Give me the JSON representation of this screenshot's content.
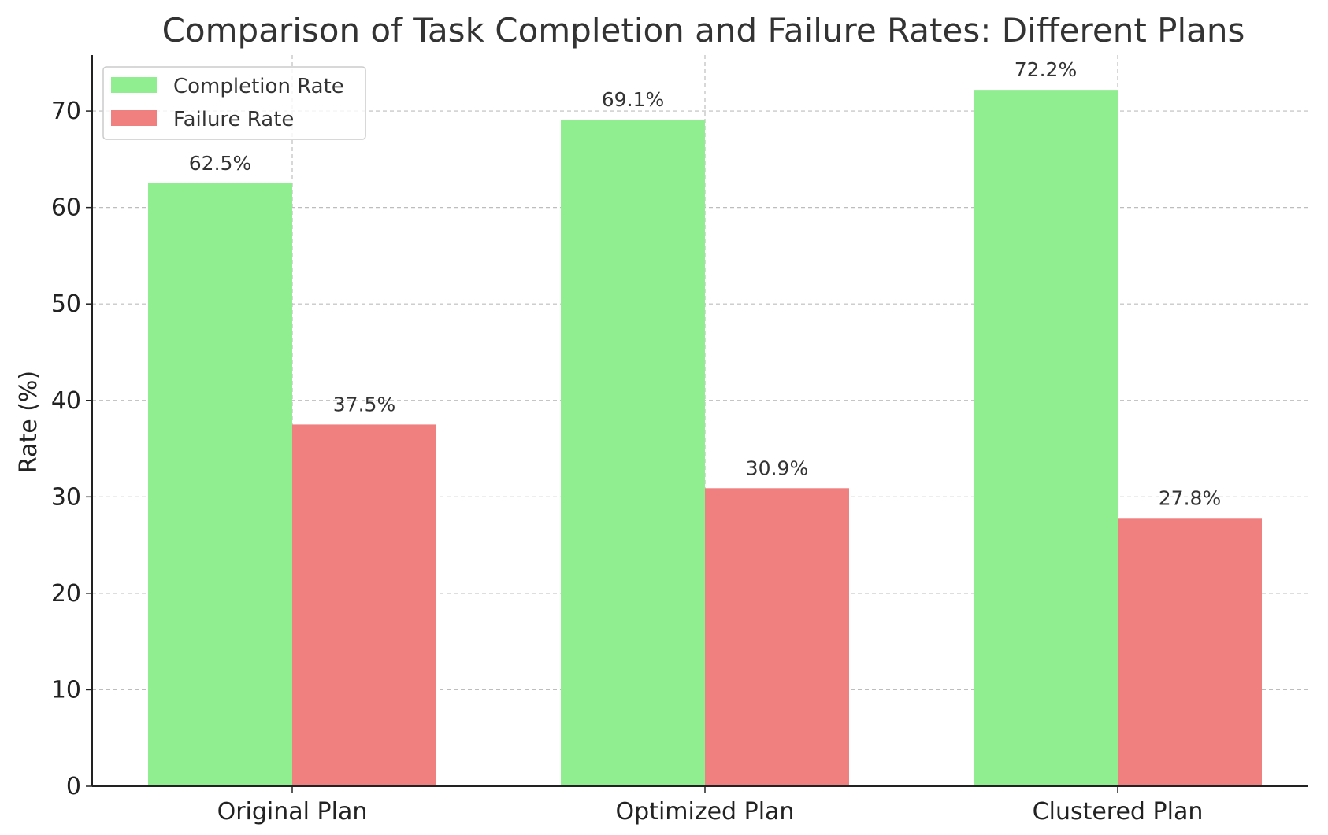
{
  "chart_data": {
    "type": "bar",
    "title": "Comparison of Task Completion and Failure Rates: Different Plans",
    "xlabel": "",
    "ylabel": "Rate (%)",
    "categories": [
      "Original Plan",
      "Optimized Plan",
      "Clustered Plan"
    ],
    "series": [
      {
        "name": "Completion Rate",
        "values": [
          62.5,
          69.1,
          72.2
        ],
        "labels": [
          "62.5%",
          "69.1%",
          "72.2%"
        ],
        "color": "#90EE90"
      },
      {
        "name": "Failure Rate",
        "values": [
          37.5,
          30.9,
          27.8
        ],
        "labels": [
          "37.5%",
          "30.9%",
          "27.8%"
        ],
        "color": "#F08080"
      }
    ],
    "ylim": [
      0,
      75.8
    ],
    "yticks": [
      0,
      10,
      20,
      30,
      40,
      50,
      60,
      70
    ],
    "grid": true,
    "legend": "top-left"
  }
}
